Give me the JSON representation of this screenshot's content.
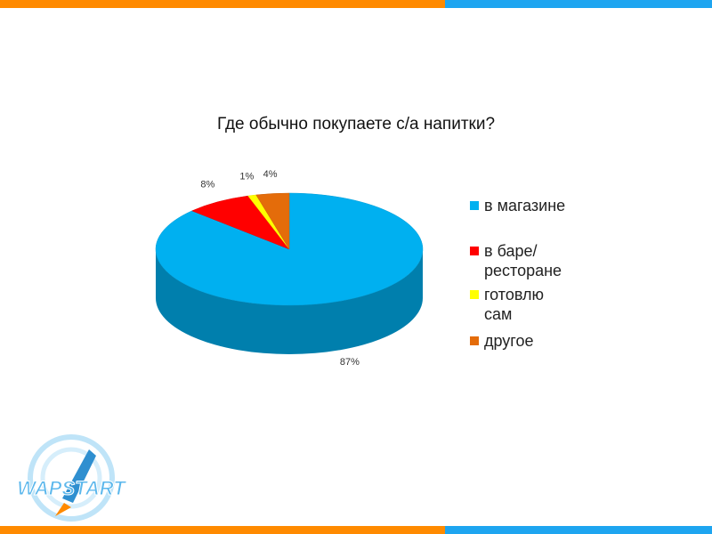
{
  "chart_data": {
    "type": "pie3d",
    "title": "Где обычно покупаете с/а напитки?",
    "categories": [
      "в магазине",
      "в баре/ ресторане",
      "готовлю сам",
      "другое"
    ],
    "values": [
      87,
      8,
      1,
      4
    ],
    "value_labels": [
      "87%",
      "8%",
      "1%",
      "4%"
    ],
    "colors": [
      "#00b0f0",
      "#ff0000",
      "#ffff00",
      "#e46c0a"
    ],
    "legend": "right"
  },
  "logo": "WAPSTART"
}
